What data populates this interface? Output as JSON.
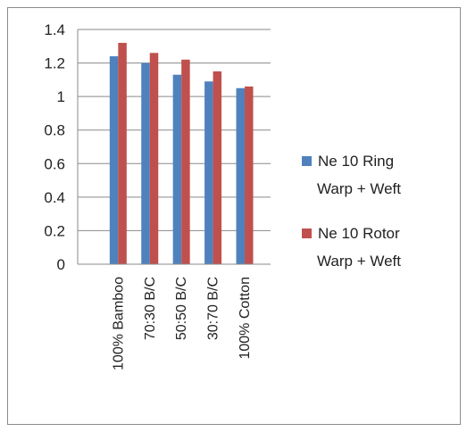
{
  "chart_data": {
    "type": "bar",
    "title": "",
    "xlabel": "",
    "ylabel": "",
    "categories": [
      "100% Bamboo",
      "70:30 B/C",
      "50:50 B/C",
      "30:70 B/C",
      "100% Cotton"
    ],
    "series": [
      {
        "name_lines": [
          "Ne 10 Ring",
          "Warp + Weft"
        ],
        "color": "#4f81bd",
        "values": [
          1.24,
          1.2,
          1.13,
          1.09,
          1.05
        ]
      },
      {
        "name_lines": [
          "Ne 10 Rotor",
          "Warp + Weft"
        ],
        "color": "#c0504d",
        "values": [
          1.32,
          1.26,
          1.22,
          1.15,
          1.06
        ]
      }
    ],
    "ylim": [
      0,
      1.4
    ],
    "y_ticks": [
      {
        "value": 0,
        "label": "0"
      },
      {
        "value": 0.2,
        "label": "0.2"
      },
      {
        "value": 0.4,
        "label": "0.4"
      },
      {
        "value": 0.6,
        "label": "0.6"
      },
      {
        "value": 0.8,
        "label": "0.8"
      },
      {
        "value": 1,
        "label": "1"
      },
      {
        "value": 1.2,
        "label": "1.2"
      },
      {
        "value": 1.4,
        "label": "1.4"
      }
    ],
    "grid": "horizontal",
    "legend_position": "right"
  }
}
